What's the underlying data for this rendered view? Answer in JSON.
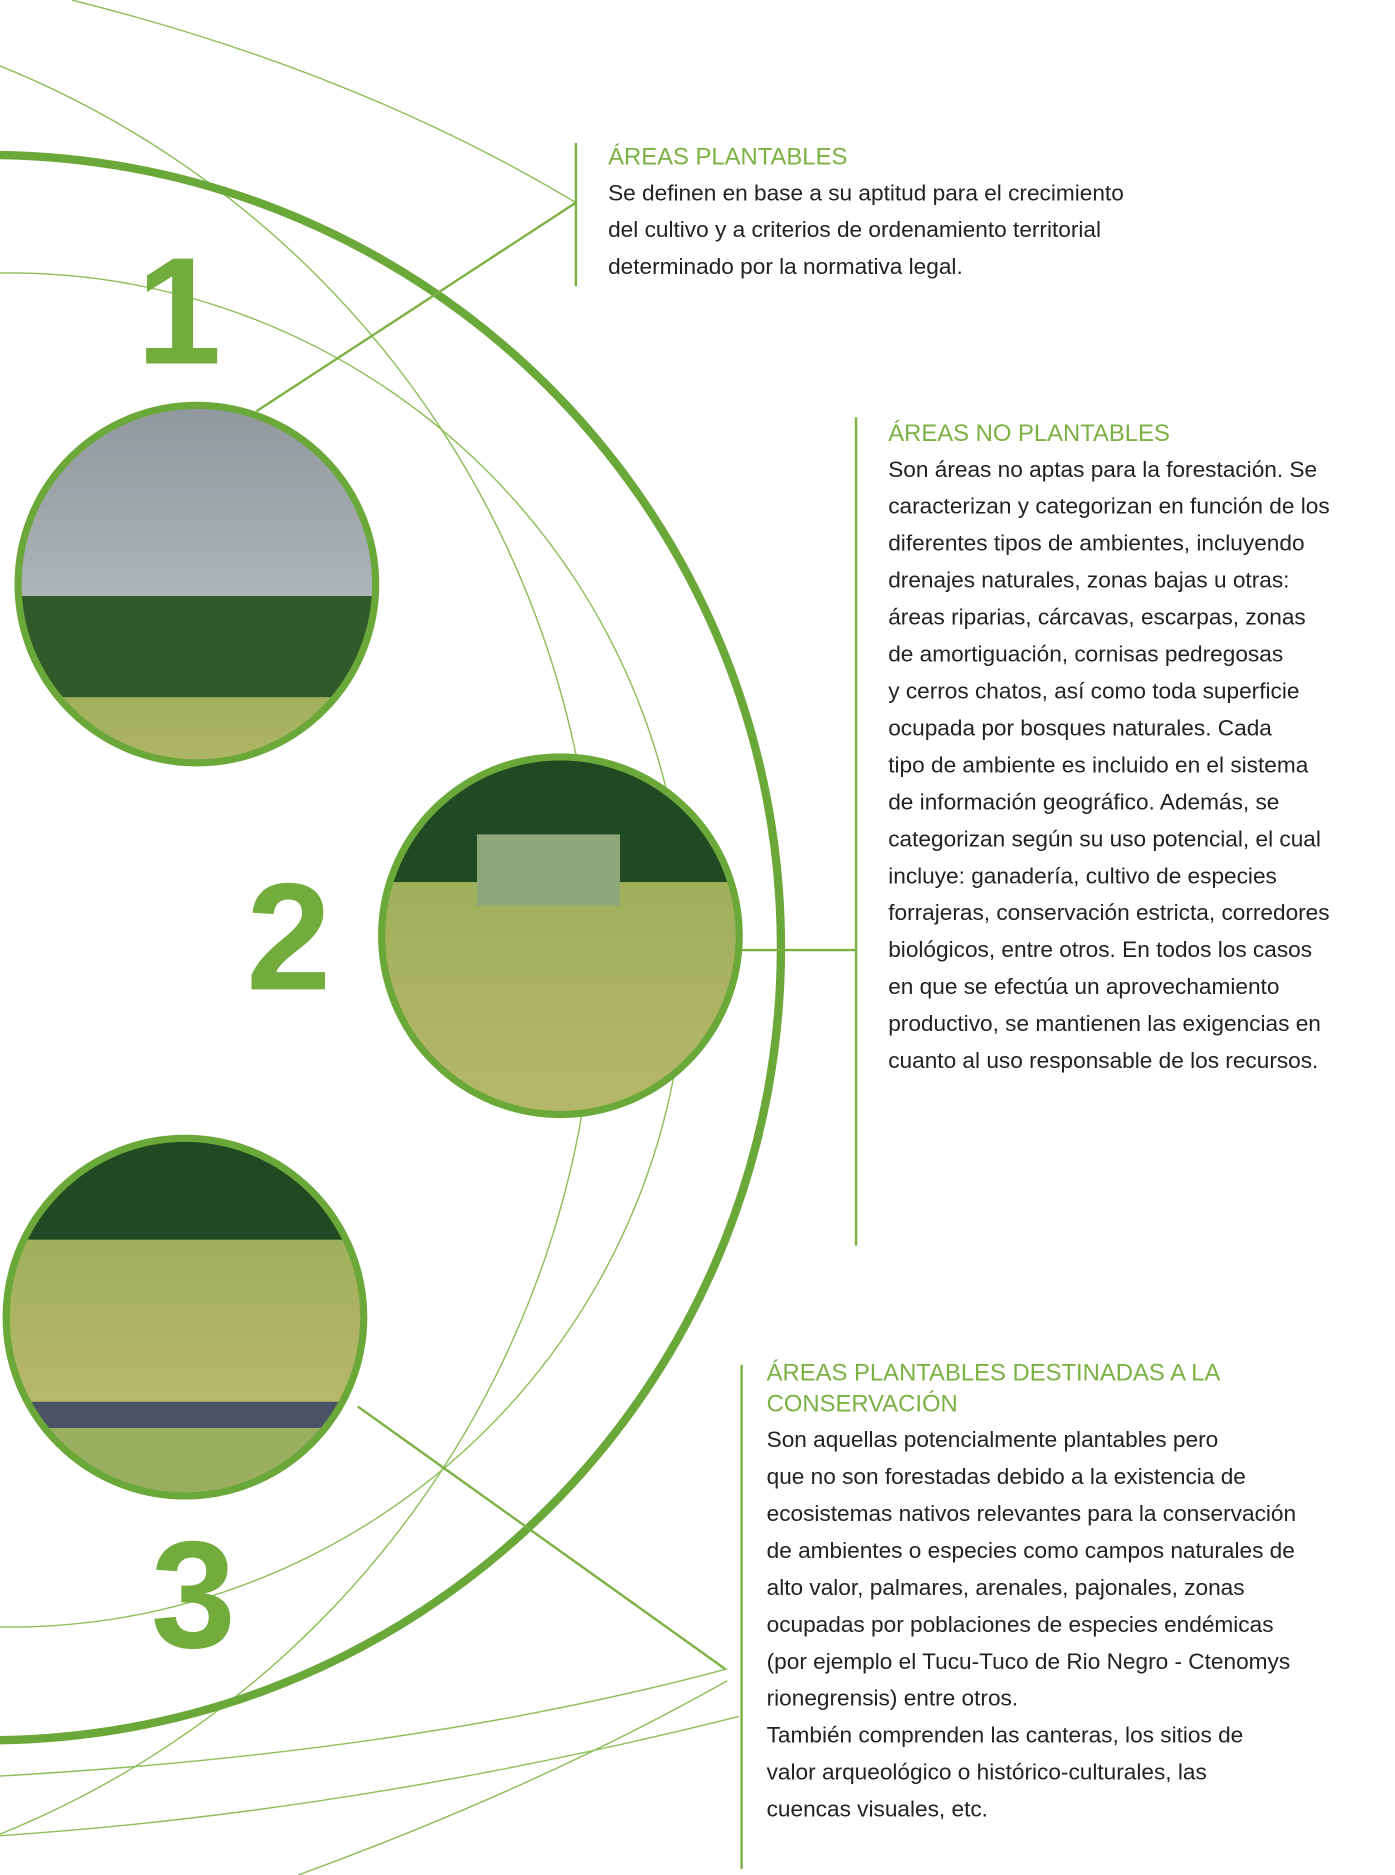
{
  "sections": [
    {
      "number": "1",
      "heading": [
        "ÁREAS PLANTABLES"
      ],
      "lines": [
        "Se definen en base a su aptitud para el crecimiento",
        "del cultivo y a criterios de ordenamiento territorial",
        "determinado por la normativa legal."
      ]
    },
    {
      "number": "2",
      "heading": [
        "ÁREAS NO PLANTABLES"
      ],
      "lines": [
        "Son áreas no aptas para la forestación. Se",
        "caracterizan y categorizan en función de los",
        "diferentes tipos de ambientes, incluyendo",
        "drenajes naturales, zonas bajas u otras:",
        "áreas riparias, cárcavas, escarpas, zonas",
        "de amortiguación, cornisas pedregosas",
        "y cerros chatos, así como toda superficie",
        "ocupada por bosques naturales. Cada",
        "tipo de ambiente es incluido en el sistema",
        "de información geográfico. Además, se",
        "categorizan según su uso potencial, el cual",
        "incluye: ganadería, cultivo de especies",
        "forrajeras, conservación estricta, corredores",
        "biológicos, entre otros. En todos los casos",
        "en que se efectúa un aprovechamiento",
        "productivo, se mantienen las exigencias en",
        "cuanto al uso responsable de los recursos."
      ]
    },
    {
      "number": "3",
      "heading": [
        "ÁREAS PLANTABLES DESTINADAS A LA",
        "CONSERVACIÓN"
      ],
      "lines": [
        "Son aquellas potencialmente plantables pero",
        "que no son forestadas debido a la existencia de",
        "ecosistemas nativos relevantes para la conservación",
        "de ambientes o especies como campos naturales de",
        "alto valor, palmares,  arenales, pajonales, zonas",
        "ocupadas por poblaciones de especies endémicas",
        "(por ejemplo el Tucu-Tuco de Rio Negro - Ctenomys",
        "rionegrensis) entre otros.",
        "También comprenden las canteras, los sitios de",
        "valor arqueológico o histórico-culturales, las",
        "cuencas visuales, etc."
      ]
    }
  ]
}
